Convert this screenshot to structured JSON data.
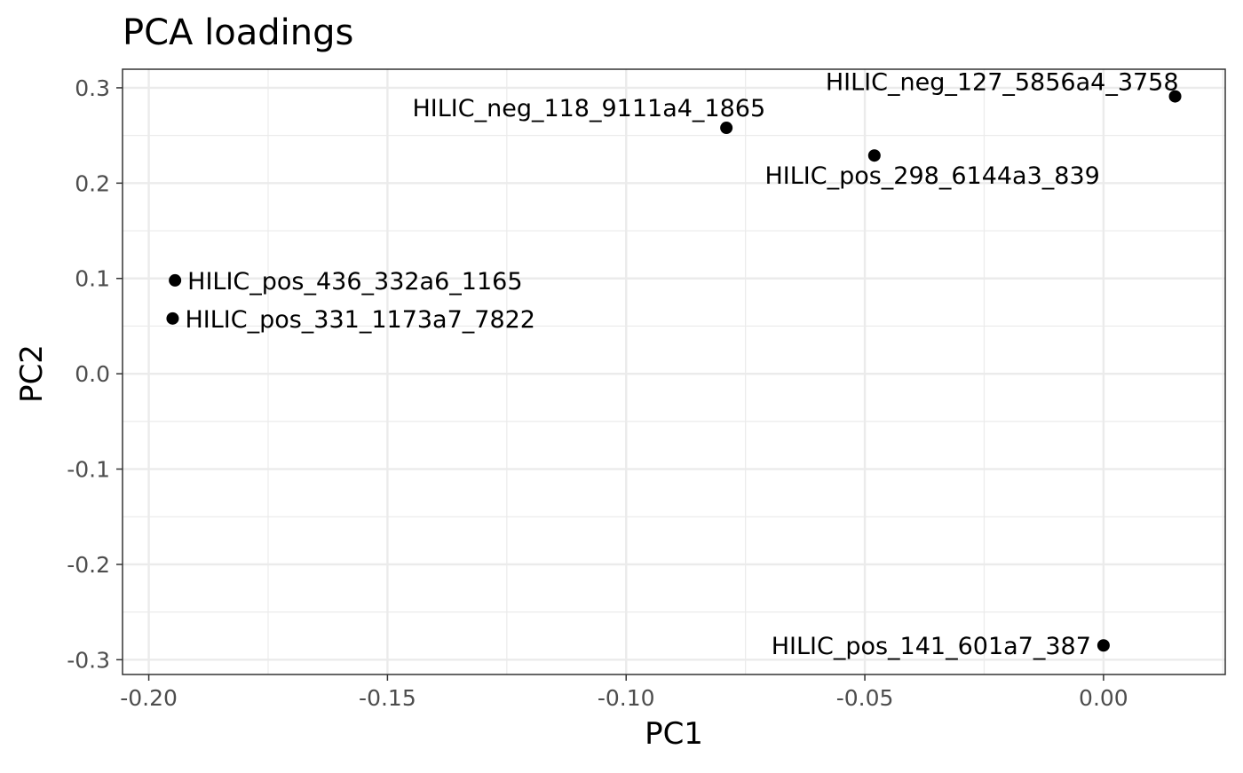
{
  "chart_data": {
    "type": "scatter",
    "title": "PCA loadings",
    "xlabel": "PC1",
    "ylabel": "PC2",
    "xlim": [
      -0.2055,
      0.0255
    ],
    "ylim": [
      -0.3155,
      0.3195
    ],
    "x_ticks": [
      -0.2,
      -0.15,
      -0.1,
      -0.05,
      0.0
    ],
    "x_tick_labels": [
      "-0.20",
      "-0.15",
      "-0.10",
      "-0.05",
      "0.00"
    ],
    "y_ticks": [
      -0.3,
      -0.2,
      -0.1,
      0.0,
      0.1,
      0.2,
      0.3
    ],
    "y_tick_labels": [
      "-0.3",
      "-0.2",
      "-0.1",
      "0.0",
      "0.1",
      "0.2",
      "0.3"
    ],
    "grid": true,
    "point_color": "#000000",
    "points": [
      {
        "label": "HILIC_neg_127_5856a4_3758",
        "x": 0.015,
        "y": 0.291
      },
      {
        "label": "HILIC_neg_118_9111a4_1865",
        "x": -0.079,
        "y": 0.258
      },
      {
        "label": "HILIC_pos_298_6144a3_839",
        "x": -0.048,
        "y": 0.229
      },
      {
        "label": "HILIC_pos_436_332a6_1165",
        "x": -0.1945,
        "y": 0.098
      },
      {
        "label": "HILIC_pos_331_1173a7_7822",
        "x": -0.195,
        "y": 0.058
      },
      {
        "label": "HILIC_pos_141_601a7_387",
        "x": 0.0,
        "y": -0.285
      }
    ]
  }
}
